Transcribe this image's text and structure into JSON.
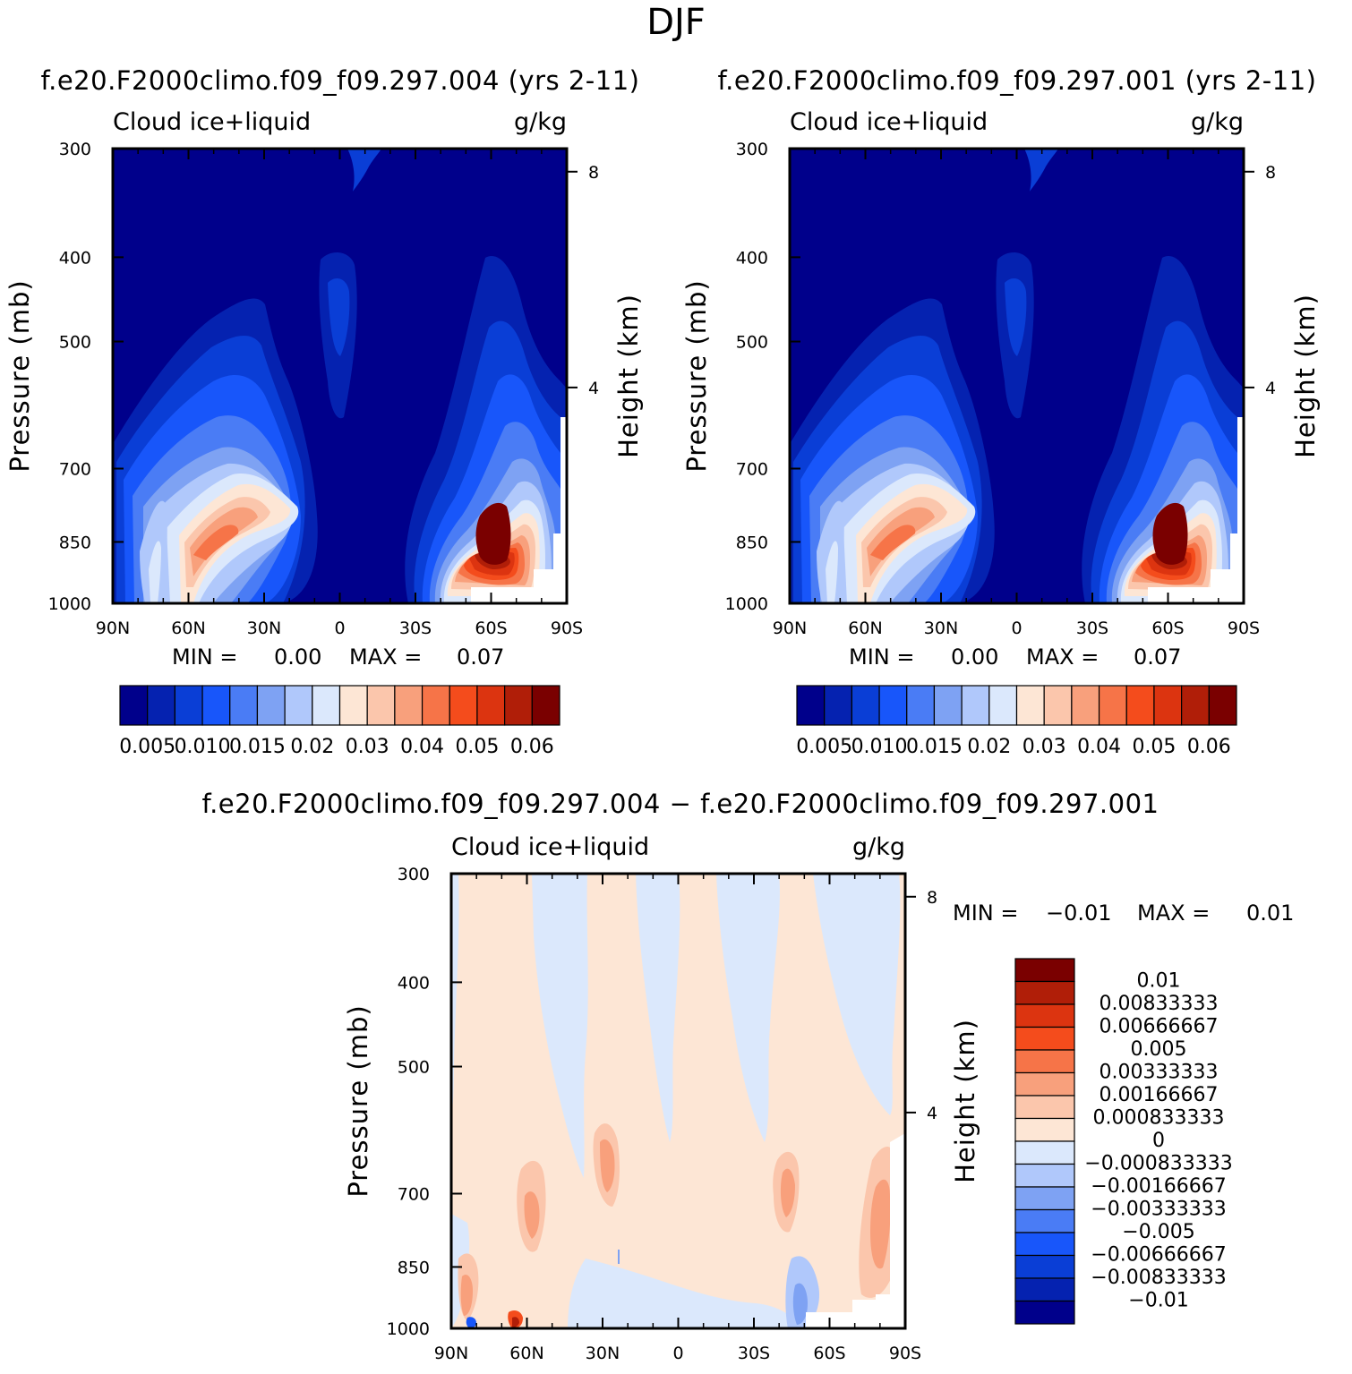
{
  "season": "DJF",
  "chart_data": [
    {
      "type": "heatmap",
      "id": "p1",
      "title": "f.e20.F2000climo.f09_f09.297.004 (yrs 2-11)",
      "variable": "Cloud ice+liquid",
      "units": "g/kg",
      "ylabel": "Pressure (mb)",
      "y2label": "Height (km)",
      "xticks": [
        "90N",
        "60N",
        "30N",
        "0",
        "30S",
        "60S",
        "90S"
      ],
      "yticks": [
        "300",
        "400",
        "500",
        "700",
        "850",
        "1000"
      ],
      "y2ticks": [
        "8",
        "4"
      ],
      "min_label": "MIN =",
      "min_value": "0.00",
      "max_label": "MAX =",
      "max_value": "0.07",
      "colorbar": {
        "orientation": "horizontal",
        "colors": [
          "#00008b",
          "#0522b0",
          "#0a3ed6",
          "#1856fa",
          "#4a7cf5",
          "#7ea2f3",
          "#b0c8fb",
          "#dbe8fc",
          "#fde6d5",
          "#fbc6ac",
          "#f8a07c",
          "#f67448",
          "#f44c1c",
          "#dc3410",
          "#b01e08",
          "#7a0000"
        ],
        "labels": [
          "0.005",
          "0.010",
          "0.015",
          "0.02",
          "0.03",
          "0.04",
          "0.05",
          "0.06"
        ]
      }
    },
    {
      "type": "heatmap",
      "id": "p2",
      "title": "f.e20.F2000climo.f09_f09.297.001 (yrs 2-11)",
      "variable": "Cloud ice+liquid",
      "units": "g/kg",
      "ylabel": "Pressure (mb)",
      "y2label": "Height (km)",
      "xticks": [
        "90N",
        "60N",
        "30N",
        "0",
        "30S",
        "60S",
        "90S"
      ],
      "yticks": [
        "300",
        "400",
        "500",
        "700",
        "850",
        "1000"
      ],
      "y2ticks": [
        "8",
        "4"
      ],
      "min_label": "MIN =",
      "min_value": "0.00",
      "max_label": "MAX =",
      "max_value": "0.07",
      "colorbar": {
        "orientation": "horizontal",
        "colors": [
          "#00008b",
          "#0522b0",
          "#0a3ed6",
          "#1856fa",
          "#4a7cf5",
          "#7ea2f3",
          "#b0c8fb",
          "#dbe8fc",
          "#fde6d5",
          "#fbc6ac",
          "#f8a07c",
          "#f67448",
          "#f44c1c",
          "#dc3410",
          "#b01e08",
          "#7a0000"
        ],
        "labels": [
          "0.005",
          "0.010",
          "0.015",
          "0.02",
          "0.03",
          "0.04",
          "0.05",
          "0.06"
        ]
      }
    },
    {
      "type": "heatmap",
      "id": "p3",
      "title": "f.e20.F2000climo.f09_f09.297.004 - f.e20.F2000climo.f09_f09.297.001",
      "variable": "Cloud ice+liquid",
      "units": "g/kg",
      "ylabel": "Pressure (mb)",
      "y2label": "Height (km)",
      "xticks": [
        "90N",
        "60N",
        "30N",
        "0",
        "30S",
        "60S",
        "90S"
      ],
      "yticks": [
        "300",
        "400",
        "500",
        "700",
        "850",
        "1000"
      ],
      "y2ticks": [
        "8",
        "4"
      ],
      "min_label": "MIN =",
      "min_value": "-0.01",
      "max_label": "MAX =",
      "max_value": "0.01",
      "colorbar": {
        "orientation": "vertical",
        "colors": [
          "#7a0000",
          "#b01e08",
          "#dc3410",
          "#f44c1c",
          "#f67448",
          "#f8a07c",
          "#fbc6ac",
          "#fde6d5",
          "#dbe8fc",
          "#b0c8fb",
          "#7ea2f3",
          "#4a7cf5",
          "#1856fa",
          "#0a3ed6",
          "#0522b0",
          "#00008b"
        ],
        "labels": [
          "0.01",
          "0.00833333",
          "0.00666667",
          "0.005",
          "0.00333333",
          "0.00166667",
          "0.000833333",
          "0",
          "-0.000833333",
          "-0.00166667",
          "-0.00333333",
          "-0.005",
          "-0.00666667",
          "-0.00833333",
          "-0.01"
        ]
      }
    }
  ]
}
